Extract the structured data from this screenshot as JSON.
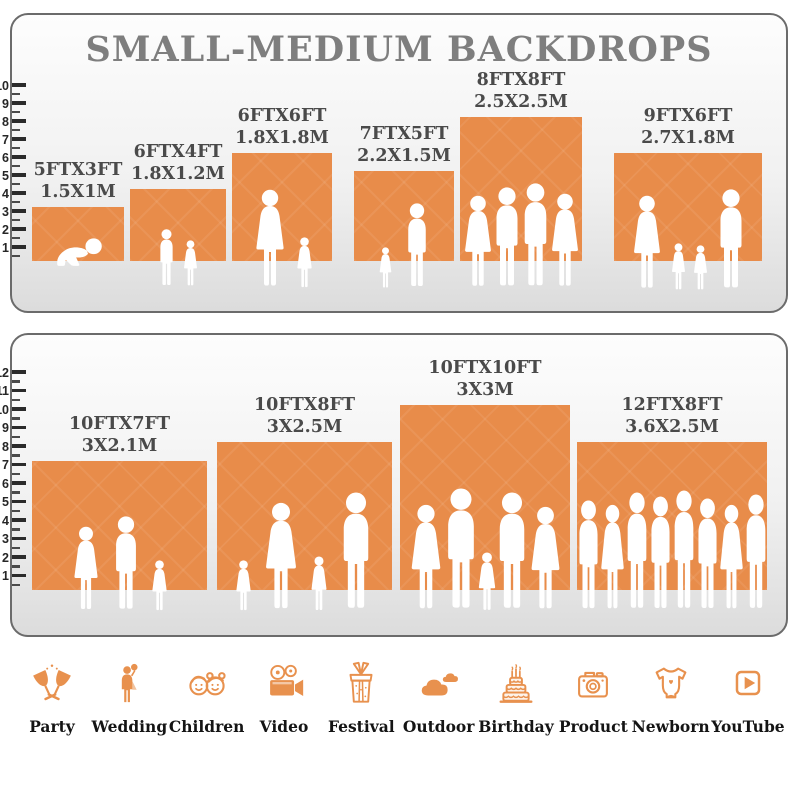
{
  "title": "SMALL-MEDIUM BACKDROPS",
  "colors": {
    "backdrop_orange": "#E88C4A",
    "icon_orange": "#E8914E",
    "panel_border": "#6B6B6B",
    "title_gray": "#7E7E7E",
    "label_gray": "#4A4A4A",
    "icon_label_black": "#141414"
  },
  "chart_data": [
    {
      "type": "bar",
      "title": "SMALL-MEDIUM BACKDROPS",
      "xlabel": "",
      "ylabel": "height (ft, ruler at left)",
      "ylim": [
        0,
        10
      ],
      "grid": false,
      "categories": [
        "5FTX3FT",
        "6FTX4FT",
        "6FTX6FT",
        "7FTX5FT",
        "8FTX8FT",
        "9FTX6FT"
      ],
      "labels_m": [
        "1.5X1M",
        "1.8X1.2M",
        "1.8X1.8M",
        "2.2X1.5M",
        "2.5X2.5M",
        "2.7X1.8M"
      ],
      "values": [
        3,
        4,
        6,
        5,
        8,
        6
      ],
      "widths_ft": [
        5,
        6,
        6,
        7,
        8,
        9
      ],
      "figures": [
        "crawling baby",
        "boy and girl",
        "mother with baby and girl",
        "toddler and man",
        "four adults posing",
        "family of four"
      ]
    },
    {
      "type": "bar",
      "title": "",
      "xlabel": "",
      "ylabel": "height (ft, ruler at left)",
      "ylim": [
        0,
        12
      ],
      "grid": false,
      "categories": [
        "10FTX7FT",
        "10FTX8FT",
        "10FTX10FT",
        "12FTX8FT"
      ],
      "labels_m": [
        "3X2.1M",
        "3X2.5M",
        "3X3M",
        "3.6X2.5M"
      ],
      "values": [
        7,
        8,
        10,
        8
      ],
      "widths_ft": [
        10,
        10,
        10,
        12
      ],
      "figures": [
        "three-person family",
        "family of four holding hands",
        "group of five",
        "group of eight adults"
      ]
    }
  ],
  "icons": [
    {
      "label": "Party",
      "icon": "party-icon"
    },
    {
      "label": "Wedding",
      "icon": "wedding-icon"
    },
    {
      "label": "Children",
      "icon": "children-icon"
    },
    {
      "label": "Video",
      "icon": "video-icon"
    },
    {
      "label": "Festival",
      "icon": "festival-icon"
    },
    {
      "label": "Outdoor",
      "icon": "outdoor-icon"
    },
    {
      "label": "Birthday",
      "icon": "birthday-icon"
    },
    {
      "label": "Product",
      "icon": "product-icon"
    },
    {
      "label": "Newborn",
      "icon": "newborn-icon"
    },
    {
      "label": "YouTube",
      "icon": "youtube-icon"
    }
  ]
}
